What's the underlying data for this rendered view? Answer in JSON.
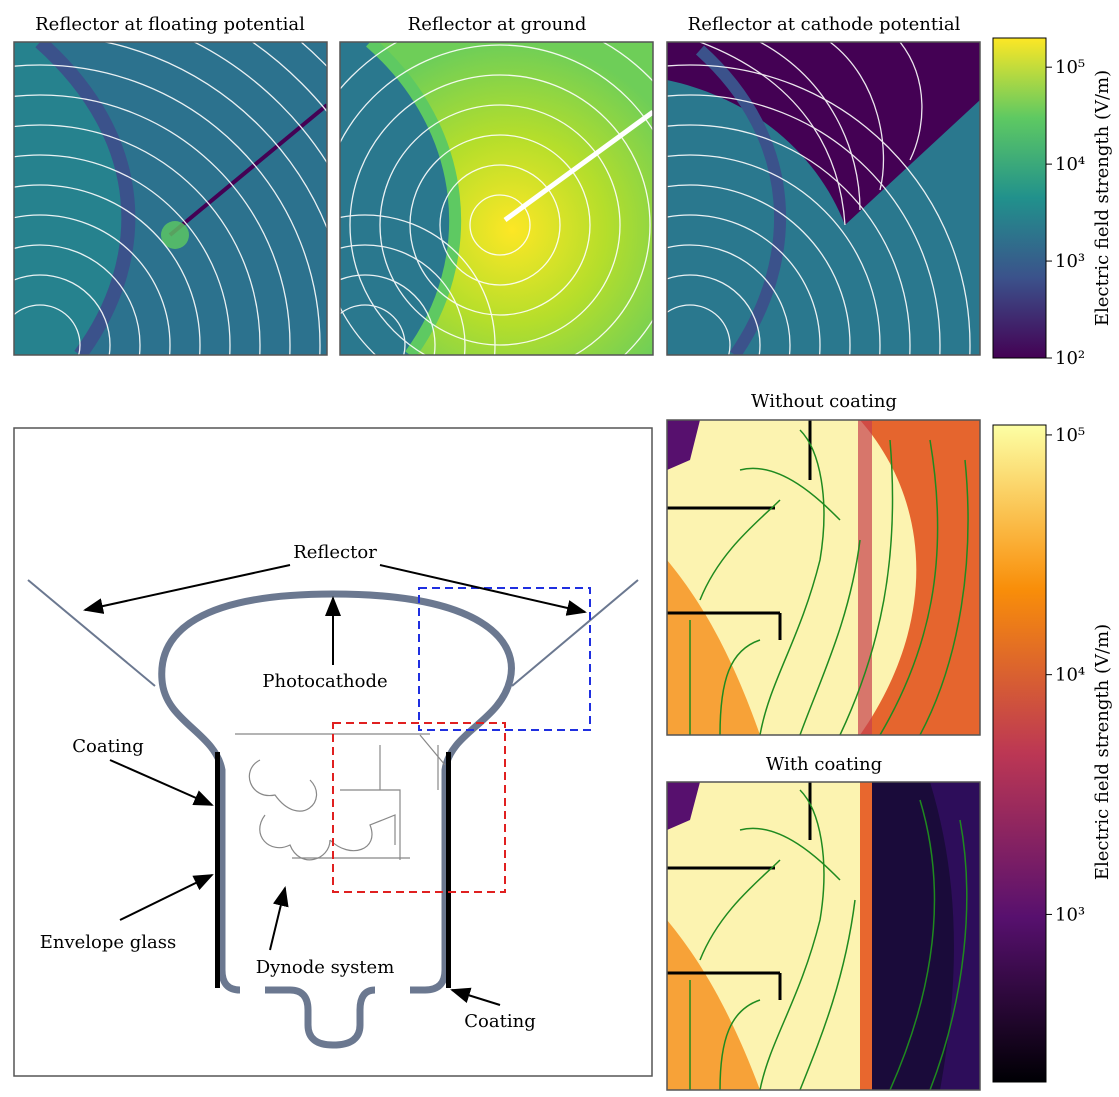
{
  "top_row": {
    "panels": [
      {
        "title": "Reflector at floating potential"
      },
      {
        "title": "Reflector at ground"
      },
      {
        "title": "Reflector at cathode potential"
      }
    ],
    "colorbar": {
      "label": "Electric field strength (V/m)",
      "scale": "log",
      "lim": [
        100,
        200000
      ],
      "ticks": [
        {
          "value": 100,
          "label": "10²"
        },
        {
          "value": 1000,
          "label": "10³"
        },
        {
          "value": 10000,
          "label": "10⁴"
        },
        {
          "value": 100000,
          "label": "10⁵"
        }
      ]
    }
  },
  "bottom_right": {
    "panels": [
      {
        "title": "Without coating"
      },
      {
        "title": "With coating"
      }
    ],
    "colorbar": {
      "label": "Electric field strength (V/m)",
      "scale": "log",
      "lim": [
        200,
        110000
      ],
      "ticks": [
        {
          "value": 1000,
          "label": "10³"
        },
        {
          "value": 10000,
          "label": "10⁴"
        },
        {
          "value": 100000,
          "label": "10⁵"
        }
      ]
    }
  },
  "diagram": {
    "labels": {
      "reflector": "Reflector",
      "photocathode": "Photocathode",
      "coating_left": "Coating",
      "envelope_glass": "Envelope glass",
      "dynode_system": "Dynode system",
      "coating_right": "Coating"
    }
  }
}
